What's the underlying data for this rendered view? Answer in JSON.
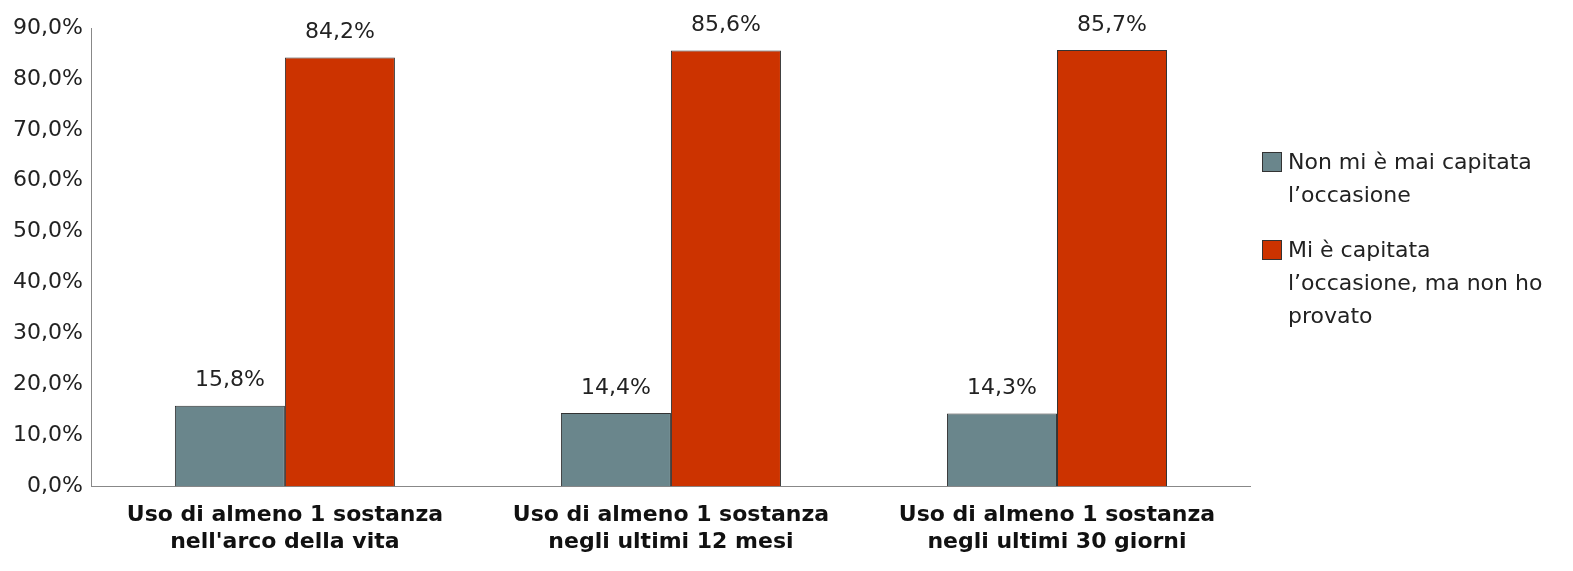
{
  "chart_data": {
    "type": "bar",
    "categories": [
      "Uso di almeno 1 sostanza nell'arco della vita",
      "Uso di almeno 1 sostanza negli ultimi 12 mesi",
      "Uso di almeno 1 sostanza negli ultimi 30 giorni"
    ],
    "series": [
      {
        "name": "Non mi è mai capitata l’occasione",
        "color": "#6a868c",
        "values": [
          15.8,
          14.4,
          14.3
        ],
        "value_labels": [
          "15,8%",
          "14,4%",
          "14,3%"
        ]
      },
      {
        "name": "Mi è capitata l’occasione, ma non ho provato",
        "color": "#cc3300",
        "values": [
          84.2,
          85.6,
          85.7
        ],
        "value_labels": [
          "84,2%",
          "85,6%",
          "85,7%"
        ]
      }
    ],
    "ylim": [
      0,
      90
    ],
    "yticks": [
      {
        "value": 0,
        "label": "0,0%"
      },
      {
        "value": 10,
        "label": "10,0%"
      },
      {
        "value": 20,
        "label": "20,0%"
      },
      {
        "value": 30,
        "label": "30,0%"
      },
      {
        "value": 40,
        "label": "40,0%"
      },
      {
        "value": 50,
        "label": "50,0%"
      },
      {
        "value": 60,
        "label": "60,0%"
      },
      {
        "value": 70,
        "label": "70,0%"
      },
      {
        "value": 80,
        "label": "80,0%"
      },
      {
        "value": 90,
        "label": "90,0%"
      }
    ],
    "grid": false,
    "legend": "right"
  }
}
